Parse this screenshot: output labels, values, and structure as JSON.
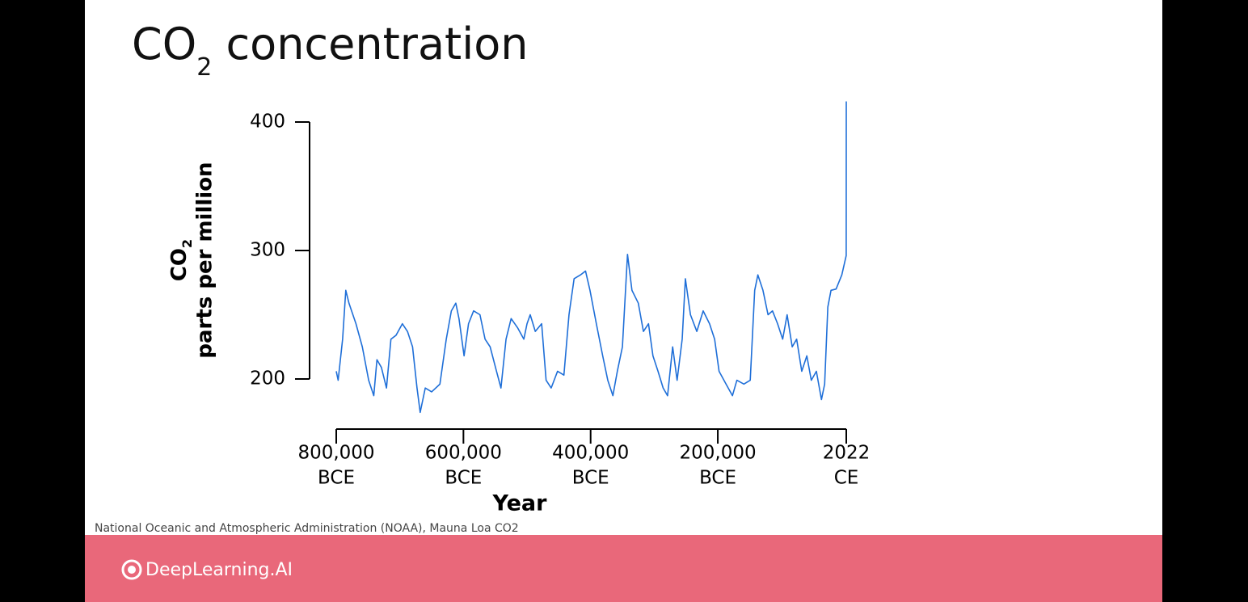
{
  "slide": {
    "title": {
      "text": "CO",
      "subscript": "2",
      "rest": " concentration"
    },
    "source": "National Oceanic and Atmospheric Administration (NOAA), Mauna Loa CO2",
    "logo": "DeepLearning.AI"
  },
  "chart_data": {
    "type": "line",
    "ylabel": {
      "text": "CO",
      "subscript": "2",
      "line2": "parts per million"
    },
    "xlabel": "Year",
    "xlim": [
      -800000,
      2022
    ],
    "xticks": [
      {
        "value": -800000,
        "label": "800,000",
        "era": "BCE"
      },
      {
        "value": -600000,
        "label": "600,000",
        "era": "BCE"
      },
      {
        "value": -400000,
        "label": "400,000",
        "era": "BCE"
      },
      {
        "value": -200000,
        "label": "200,000",
        "era": "BCE"
      },
      {
        "value": 2022,
        "label": "2022",
        "era": "CE"
      }
    ],
    "ylim": [
      200,
      400
    ],
    "yticks": [
      200,
      300,
      400
    ],
    "series": [
      {
        "color": "#1f6fd8",
        "x": [
          -800000,
          -797000,
          -790000,
          -785000,
          -780000,
          -769000,
          -759000,
          -749000,
          -741000,
          -736000,
          -729000,
          -721000,
          -714000,
          -706000,
          -696000,
          -688000,
          -680000,
          -673000,
          -668000,
          -660000,
          -650000,
          -637000,
          -627000,
          -619000,
          -612000,
          -607000,
          -599000,
          -592000,
          -584000,
          -574000,
          -566000,
          -558000,
          -548000,
          -541000,
          -533000,
          -525000,
          -515000,
          -505000,
          -500000,
          -495000,
          -487000,
          -477000,
          -470000,
          -462000,
          -452000,
          -442000,
          -434000,
          -426000,
          -416000,
          -408000,
          -401000,
          -391000,
          -381000,
          -373000,
          -365000,
          -358000,
          -350000,
          -342000,
          -335000,
          -325000,
          -317000,
          -309000,
          -302000,
          -294000,
          -286000,
          -279000,
          -271000,
          -264000,
          -256000,
          -251000,
          -243000,
          -233000,
          -223000,
          -213000,
          -205000,
          -198000,
          -187000,
          -177000,
          -170000,
          -159000,
          -149000,
          -142000,
          -137000,
          -129000,
          -121000,
          -114000,
          -106000,
          -98000,
          -91000,
          -83000,
          -76000,
          -68000,
          -60000,
          -53000,
          -45000,
          -37000,
          -32000,
          -27000,
          -22000,
          -14000,
          -5000,
          1900,
          2022
        ],
        "values": [
          206,
          199,
          231,
          269,
          259,
          243,
          225,
          199,
          187,
          215,
          209,
          193,
          231,
          234,
          243,
          237,
          225,
          193,
          174,
          193,
          190,
          196,
          231,
          253,
          259,
          247,
          218,
          243,
          253,
          250,
          231,
          225,
          206,
          193,
          231,
          247,
          240,
          231,
          243,
          250,
          237,
          243,
          199,
          193,
          206,
          203,
          250,
          278,
          281,
          284,
          269,
          243,
          218,
          199,
          187,
          206,
          225,
          297,
          269,
          259,
          237,
          243,
          218,
          206,
          193,
          187,
          225,
          199,
          231,
          278,
          250,
          237,
          253,
          243,
          231,
          206,
          196,
          187,
          199,
          196,
          199,
          269,
          281,
          269,
          250,
          253,
          243,
          231,
          250,
          225,
          231,
          206,
          218,
          199,
          206,
          184,
          196,
          256,
          269,
          270,
          281,
          296,
          416
        ]
      }
    ]
  }
}
